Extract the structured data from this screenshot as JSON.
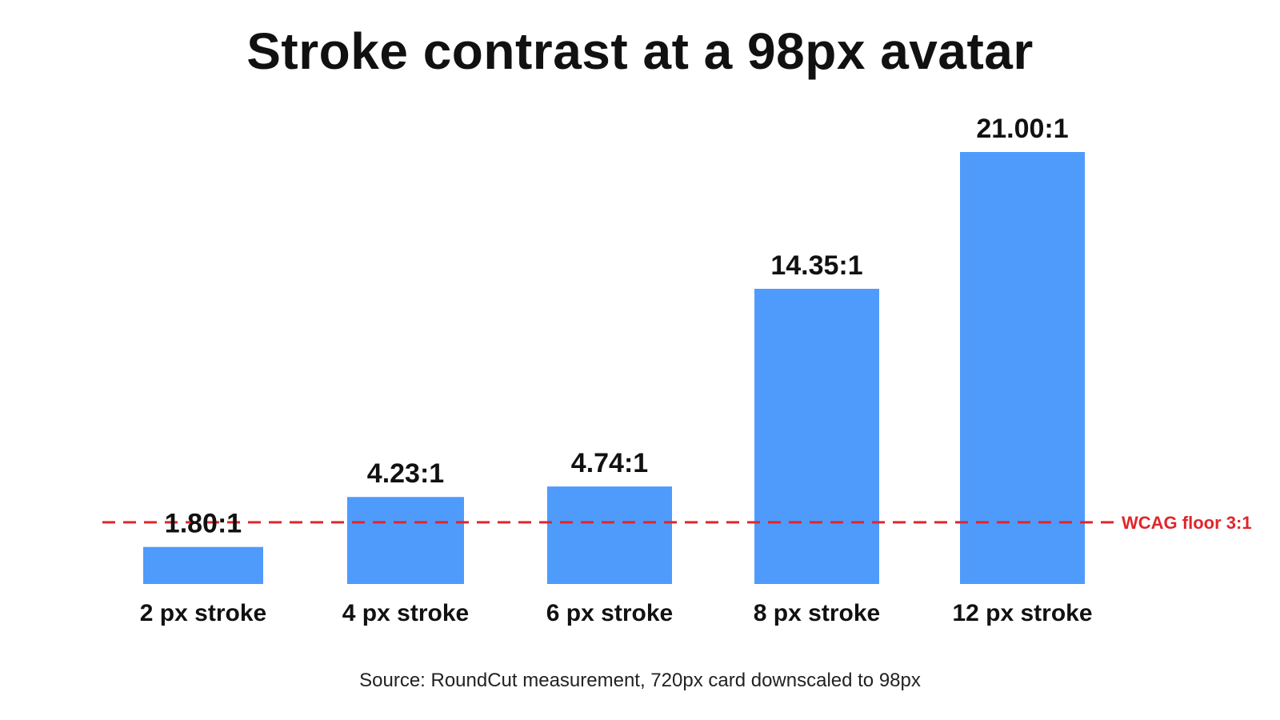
{
  "chart_data": {
    "type": "bar",
    "title": "Stroke contrast at a 98px avatar",
    "categories": [
      "2 px stroke",
      "4 px stroke",
      "6 px stroke",
      "8 px stroke",
      "12 px stroke"
    ],
    "values": [
      1.8,
      4.23,
      4.74,
      14.35,
      21.0
    ],
    "value_labels": [
      "1.80:1",
      "4.23:1",
      "4.74:1",
      "14.35:1",
      "21.00:1"
    ],
    "ylim": [
      0,
      21
    ],
    "grid": false,
    "reference_line": {
      "value": 3,
      "label": "WCAG floor 3:1",
      "color": "#e0262b",
      "style": "dashed"
    },
    "bar_color": "#4f9bfb",
    "source": "Source: RoundCut measurement, 720px card downscaled to 98px"
  }
}
